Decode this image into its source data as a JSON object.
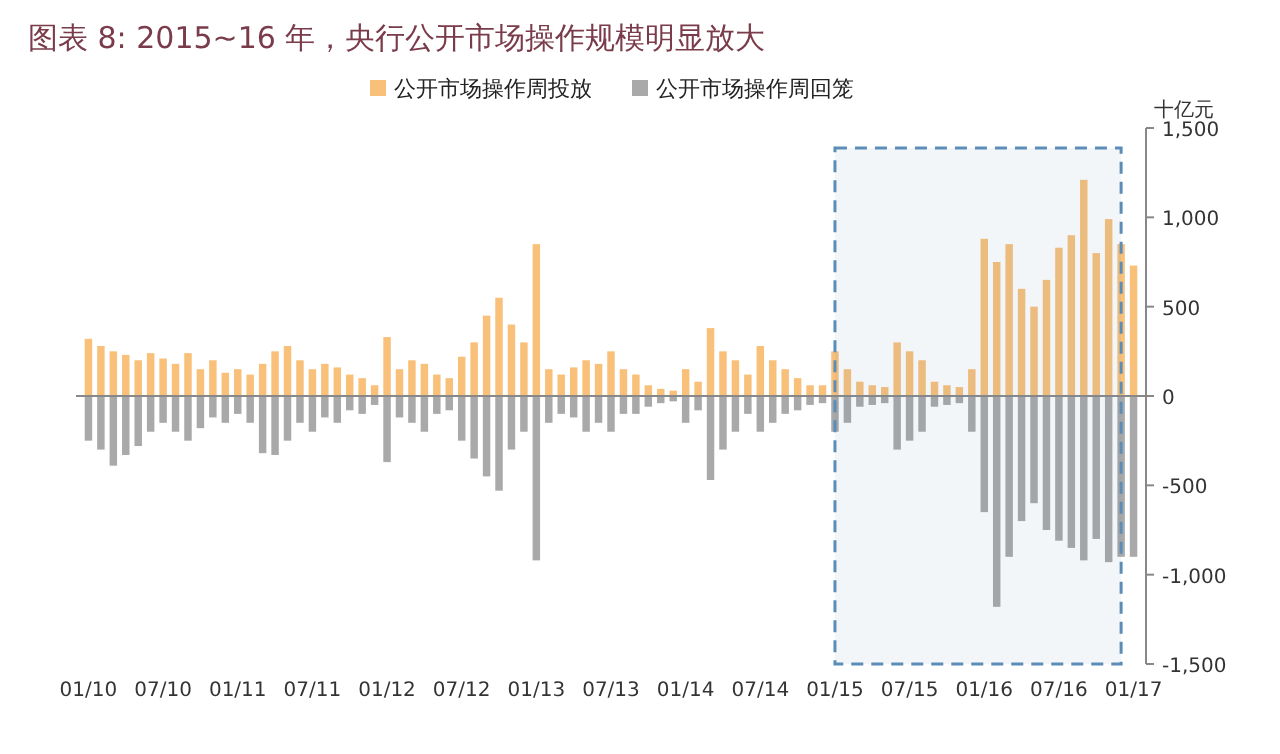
{
  "chart_data": {
    "type": "bar",
    "title": "图表 8: 2015~16 年，央行公开市场操作规模明显放大",
    "ylabel": "十亿元",
    "x": [
      "2010-01",
      "2010-02",
      "2010-03",
      "2010-04",
      "2010-05",
      "2010-06",
      "2010-07",
      "2010-08",
      "2010-09",
      "2010-10",
      "2010-11",
      "2010-12",
      "2011-01",
      "2011-02",
      "2011-03",
      "2011-04",
      "2011-05",
      "2011-06",
      "2011-07",
      "2011-08",
      "2011-09",
      "2011-10",
      "2011-11",
      "2011-12",
      "2012-01",
      "2012-02",
      "2012-03",
      "2012-04",
      "2012-05",
      "2012-06",
      "2012-07",
      "2012-08",
      "2012-09",
      "2012-10",
      "2012-11",
      "2012-12",
      "2013-01",
      "2013-02",
      "2013-03",
      "2013-04",
      "2013-05",
      "2013-06",
      "2013-07",
      "2013-08",
      "2013-09",
      "2013-10",
      "2013-11",
      "2013-12",
      "2014-01",
      "2014-02",
      "2014-03",
      "2014-04",
      "2014-05",
      "2014-06",
      "2014-07",
      "2014-08",
      "2014-09",
      "2014-10",
      "2014-11",
      "2014-12",
      "2015-01",
      "2015-02",
      "2015-03",
      "2015-04",
      "2015-05",
      "2015-06",
      "2015-07",
      "2015-08",
      "2015-09",
      "2015-10",
      "2015-11",
      "2015-12",
      "2016-01",
      "2016-02",
      "2016-03",
      "2016-04",
      "2016-05",
      "2016-06",
      "2016-07",
      "2016-08",
      "2016-09",
      "2016-10",
      "2016-11",
      "2016-12",
      "2017-01"
    ],
    "series": [
      {
        "name": "公开市场操作周投放",
        "color": "#f9c07a",
        "values": [
          320,
          280,
          250,
          230,
          200,
          240,
          210,
          180,
          240,
          150,
          200,
          130,
          150,
          120,
          180,
          250,
          280,
          200,
          150,
          180,
          160,
          120,
          100,
          60,
          330,
          150,
          200,
          180,
          120,
          100,
          220,
          300,
          450,
          550,
          400,
          300,
          850,
          150,
          120,
          160,
          200,
          180,
          250,
          150,
          120,
          60,
          40,
          30,
          150,
          80,
          380,
          250,
          200,
          120,
          280,
          200,
          150,
          100,
          60,
          60,
          250,
          150,
          80,
          60,
          50,
          300,
          250,
          200,
          80,
          60,
          50,
          150,
          880,
          750,
          850,
          600,
          500,
          650,
          830,
          900,
          1210,
          800,
          990,
          850,
          730
        ]
      },
      {
        "name": "公开市场操作周回笼",
        "color": "#a9a9a9",
        "values": [
          -250,
          -300,
          -390,
          -330,
          -280,
          -200,
          -150,
          -200,
          -250,
          -180,
          -120,
          -150,
          -100,
          -150,
          -320,
          -330,
          -250,
          -150,
          -200,
          -120,
          -150,
          -80,
          -100,
          -50,
          -370,
          -120,
          -150,
          -200,
          -100,
          -80,
          -250,
          -350,
          -450,
          -530,
          -300,
          -200,
          -920,
          -150,
          -100,
          -120,
          -200,
          -150,
          -200,
          -100,
          -100,
          -60,
          -40,
          -30,
          -150,
          -80,
          -470,
          -300,
          -200,
          -100,
          -200,
          -150,
          -100,
          -80,
          -50,
          -40,
          -200,
          -150,
          -60,
          -50,
          -40,
          -300,
          -250,
          -200,
          -60,
          -50,
          -40,
          -200,
          -650,
          -1180,
          -900,
          -700,
          -600,
          -750,
          -810,
          -850,
          -920,
          -800,
          -930,
          -900,
          -900
        ]
      }
    ],
    "xlim": [
      "2009-12",
      "2017-02"
    ],
    "xticks": [
      {
        "value": "2010-01",
        "label": "01/10"
      },
      {
        "value": "2010-07",
        "label": "07/10"
      },
      {
        "value": "2011-01",
        "label": "01/11"
      },
      {
        "value": "2011-07",
        "label": "07/11"
      },
      {
        "value": "2012-01",
        "label": "01/12"
      },
      {
        "value": "2012-07",
        "label": "07/12"
      },
      {
        "value": "2013-01",
        "label": "01/13"
      },
      {
        "value": "2013-07",
        "label": "07/13"
      },
      {
        "value": "2014-01",
        "label": "01/14"
      },
      {
        "value": "2014-07",
        "label": "07/14"
      },
      {
        "value": "2015-01",
        "label": "01/15"
      },
      {
        "value": "2015-07",
        "label": "07/15"
      },
      {
        "value": "2016-01",
        "label": "01/16"
      },
      {
        "value": "2016-07",
        "label": "07/16"
      },
      {
        "value": "2017-01",
        "label": "01/17"
      }
    ],
    "ylim": [
      -1500,
      1500
    ],
    "yticks": [
      {
        "value": 1500,
        "label": "1,500"
      },
      {
        "value": 1000,
        "label": "1,000"
      },
      500,
      0,
      -500,
      {
        "value": -1000,
        "label": "-1,000"
      },
      {
        "value": -1500,
        "label": "-1,500"
      }
    ],
    "bands": [
      {
        "axis": "x",
        "from": "2015-01",
        "to": "2016-12",
        "color": "#5b8db8"
      }
    ],
    "stacked": true,
    "legend": "top"
  }
}
